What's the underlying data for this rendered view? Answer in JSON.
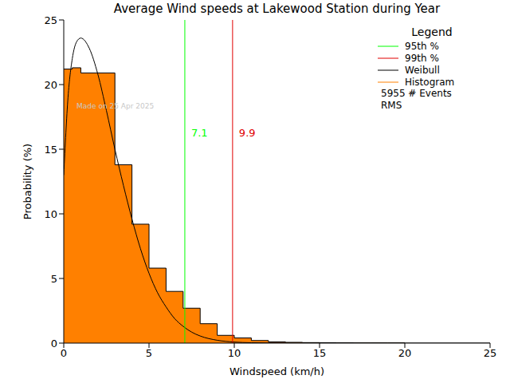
{
  "chart_data": {
    "type": "histogram",
    "title": "Average Wind speeds at Lakewood Station during Year",
    "xlabel": "Windspeed (km/h)",
    "ylabel": "Probability (%)",
    "xlim": [
      0,
      25
    ],
    "xticks": [
      0,
      5,
      10,
      15,
      20,
      25
    ],
    "ylim": [
      0,
      25
    ],
    "yticks": [
      0,
      5,
      10,
      15,
      20,
      25
    ],
    "grid": false,
    "legend": "upper right",
    "legend_title": "Legend",
    "watermark": "Made on 25 Apr 2025",
    "annotations": [
      "5955 # Events",
      "RMS"
    ],
    "reference_lines": [
      {
        "name": "95th %",
        "value": 7.1,
        "color": "#00ff00"
      },
      {
        "name": "99th %",
        "value": 9.9,
        "color": "#e00000"
      }
    ],
    "series": [
      {
        "name": "Weibull",
        "type": "line",
        "color": "#000000",
        "x": [
          0,
          0.25,
          0.5,
          0.75,
          1,
          1.5,
          2,
          2.5,
          3,
          3.5,
          4,
          4.5,
          5,
          5.5,
          6,
          6.5,
          7,
          7.5,
          8,
          9,
          10,
          11,
          12,
          14,
          25
        ],
        "values": [
          13,
          19,
          22,
          23.3,
          23.6,
          22.8,
          20.8,
          18,
          15,
          12.2,
          9.6,
          7.3,
          5.4,
          3.9,
          2.8,
          1.9,
          1.3,
          0.85,
          0.55,
          0.22,
          0.08,
          0.03,
          0.01,
          0,
          0
        ]
      },
      {
        "name": "Histogram",
        "type": "histogram",
        "color": "#ff8000",
        "bins": [
          0,
          0.5,
          1,
          2,
          3,
          4,
          5,
          6,
          7,
          8,
          9,
          10,
          11,
          12,
          13,
          14,
          15,
          16,
          17,
          18,
          19,
          20
        ],
        "values": [
          21.2,
          21.3,
          20.9,
          20.9,
          13.8,
          9.2,
          5.8,
          4.0,
          2.7,
          1.5,
          0.6,
          0.4,
          0.2,
          0.1,
          0.06,
          0.04,
          0.03,
          0.02,
          0.01,
          0.01,
          0.01
        ]
      }
    ]
  }
}
